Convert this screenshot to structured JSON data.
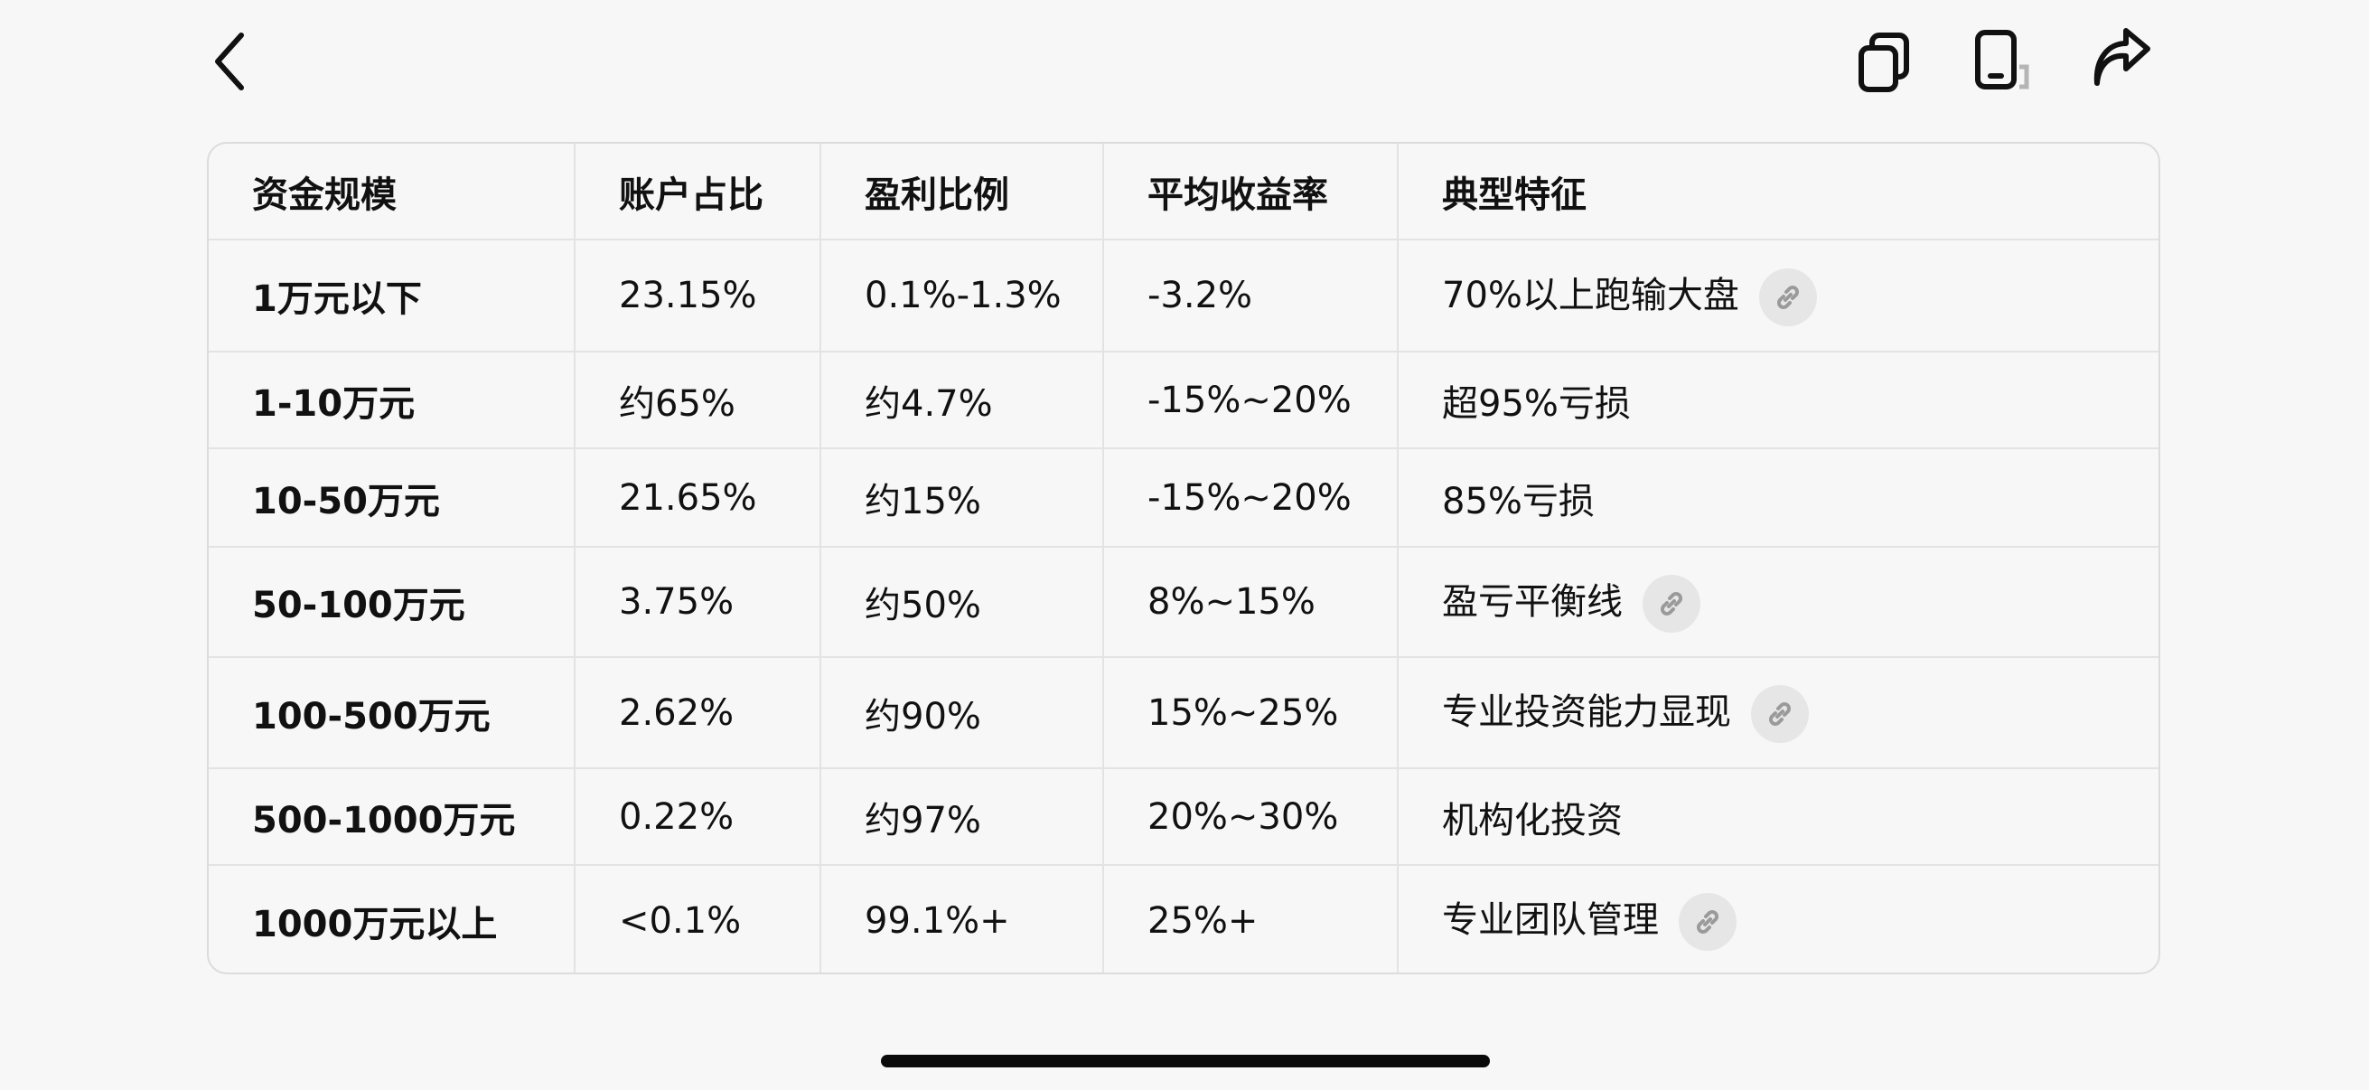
{
  "toolbar": {
    "back_icon": "chevron-left-icon",
    "icons": [
      "copy-icon",
      "phone-rotate-icon",
      "share-icon"
    ]
  },
  "table": {
    "headers": [
      "资金规模",
      "账户占比",
      "盈利比例",
      "平均收益率",
      "典型特征"
    ],
    "rows": [
      {
        "cells": [
          "1万元以下",
          "23.15%",
          "0.1%-1.3%",
          "-3.2%",
          "70%以上跑输大盘"
        ],
        "link": true
      },
      {
        "cells": [
          "1-10万元",
          "约65%",
          "约4.7%",
          "-15%~20%",
          "超95%亏损"
        ],
        "link": false
      },
      {
        "cells": [
          "10-50万元",
          "21.65%",
          "约15%",
          "-15%~20%",
          "85%亏损"
        ],
        "link": false
      },
      {
        "cells": [
          "50-100万元",
          "3.75%",
          "约50%",
          "8%~15%",
          "盈亏平衡线"
        ],
        "link": true
      },
      {
        "cells": [
          "100-500万元",
          "2.62%",
          "约90%",
          "15%~25%",
          "专业投资能力显现"
        ],
        "link": true
      },
      {
        "cells": [
          "500-1000万元",
          "0.22%",
          "约97%",
          "20%~30%",
          "机构化投资"
        ],
        "link": false
      },
      {
        "cells": [
          "1000万元以上",
          "<0.1%",
          "99.1%+",
          "25%+",
          "专业团队管理"
        ],
        "link": true
      }
    ]
  }
}
